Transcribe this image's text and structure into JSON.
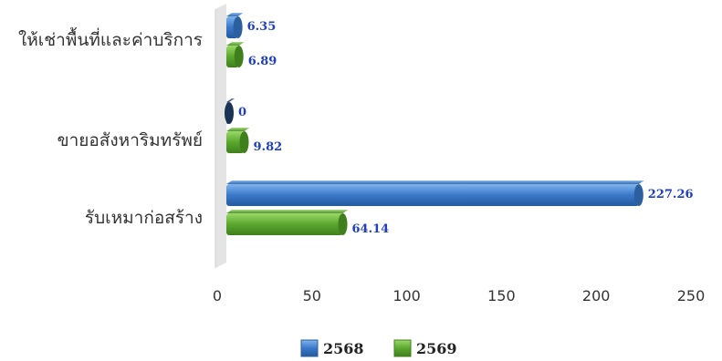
{
  "chart_data": {
    "type": "bar",
    "orientation": "horizontal",
    "categories": [
      "ให้เช่าพื้นที่และค่าบริการ",
      "ขายอสังหาริมทรัพย์",
      "รับเหมาก่อสร้าง"
    ],
    "series": [
      {
        "name": "2568",
        "values": [
          6.35,
          0,
          227.26
        ],
        "color": "#3a78c8"
      },
      {
        "name": "2569",
        "values": [
          6.89,
          9.82,
          64.14
        ],
        "color": "#5aa82e"
      }
    ],
    "data_labels": [
      [
        "6.35",
        "0",
        "227.26"
      ],
      [
        "6.89",
        "9.82",
        "64.14"
      ]
    ],
    "xlim": [
      0,
      250
    ],
    "x_ticks": [
      "0",
      "50",
      "100",
      "150",
      "200",
      "250"
    ],
    "legend_position": "bottom",
    "grid": false
  }
}
